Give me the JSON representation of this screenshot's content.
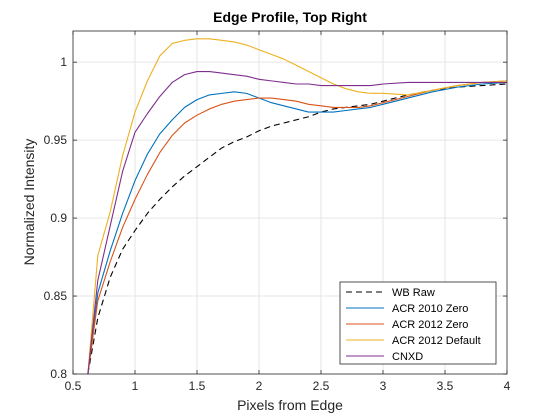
{
  "chart_data": {
    "type": "line",
    "title": "Edge Profile, Top Right",
    "xlabel": "Pixels from Edge",
    "ylabel": "Normalized Intensity",
    "xlim": [
      0.5,
      4
    ],
    "ylim": [
      0.8,
      1.02
    ],
    "xticks": [
      0.5,
      1,
      1.5,
      2,
      2.5,
      3,
      3.5,
      4
    ],
    "xtick_labels": [
      "0.5",
      "1",
      "1.5",
      "2",
      "2.5",
      "3",
      "3.5",
      "4"
    ],
    "yticks": [
      0.8,
      0.85,
      0.9,
      0.95,
      1
    ],
    "ytick_labels": [
      "0.8",
      "0.85",
      "0.9",
      "0.95",
      "1"
    ],
    "grid": true,
    "legend_position": "bottom-right",
    "series": [
      {
        "name": "WB Raw",
        "color": "#000000",
        "dashed": true,
        "x": [
          0.62,
          0.7,
          0.8,
          0.9,
          1.0,
          1.1,
          1.2,
          1.3,
          1.4,
          1.5,
          1.6,
          1.7,
          1.8,
          1.9,
          2.0,
          2.1,
          2.2,
          2.3,
          2.4,
          2.5,
          2.6,
          2.7,
          2.8,
          2.9,
          3.0,
          3.2,
          3.4,
          3.6,
          3.8,
          4.0
        ],
        "y": [
          0.8,
          0.836,
          0.862,
          0.88,
          0.892,
          0.903,
          0.912,
          0.92,
          0.927,
          0.933,
          0.939,
          0.945,
          0.949,
          0.952,
          0.956,
          0.959,
          0.961,
          0.963,
          0.965,
          0.968,
          0.97,
          0.971,
          0.972,
          0.973,
          0.975,
          0.979,
          0.982,
          0.984,
          0.985,
          0.986
        ]
      },
      {
        "name": "ACR 2010 Zero",
        "color": "#0072BD",
        "dashed": false,
        "x": [
          0.62,
          0.7,
          0.8,
          0.9,
          1.0,
          1.1,
          1.2,
          1.3,
          1.4,
          1.5,
          1.6,
          1.7,
          1.8,
          1.9,
          2.0,
          2.1,
          2.2,
          2.3,
          2.4,
          2.5,
          2.6,
          2.7,
          2.8,
          2.9,
          3.0,
          3.2,
          3.4,
          3.6,
          3.8,
          4.0
        ],
        "y": [
          0.8,
          0.852,
          0.879,
          0.903,
          0.924,
          0.941,
          0.954,
          0.963,
          0.971,
          0.976,
          0.979,
          0.98,
          0.981,
          0.98,
          0.977,
          0.974,
          0.972,
          0.97,
          0.968,
          0.968,
          0.968,
          0.969,
          0.97,
          0.971,
          0.973,
          0.977,
          0.981,
          0.984,
          0.986,
          0.987
        ]
      },
      {
        "name": "ACR 2012 Zero",
        "color": "#D95319",
        "dashed": false,
        "x": [
          0.62,
          0.7,
          0.8,
          0.9,
          1.0,
          1.1,
          1.2,
          1.3,
          1.4,
          1.5,
          1.6,
          1.7,
          1.8,
          1.9,
          2.0,
          2.1,
          2.2,
          2.3,
          2.4,
          2.5,
          2.6,
          2.7,
          2.8,
          2.9,
          3.0,
          3.2,
          3.4,
          3.6,
          3.8,
          4.0
        ],
        "y": [
          0.8,
          0.847,
          0.872,
          0.894,
          0.912,
          0.928,
          0.942,
          0.953,
          0.961,
          0.966,
          0.97,
          0.973,
          0.975,
          0.976,
          0.977,
          0.977,
          0.976,
          0.975,
          0.973,
          0.972,
          0.971,
          0.971,
          0.971,
          0.972,
          0.974,
          0.978,
          0.982,
          0.985,
          0.987,
          0.988
        ]
      },
      {
        "name": "ACR 2012 Default",
        "color": "#EDB120",
        "dashed": false,
        "x": [
          0.62,
          0.7,
          0.8,
          0.9,
          1.0,
          1.1,
          1.2,
          1.3,
          1.4,
          1.5,
          1.6,
          1.7,
          1.8,
          1.9,
          2.0,
          2.1,
          2.2,
          2.3,
          2.4,
          2.5,
          2.6,
          2.7,
          2.8,
          2.9,
          3.0,
          3.2,
          3.4,
          3.6,
          3.8,
          4.0
        ],
        "y": [
          0.8,
          0.876,
          0.904,
          0.94,
          0.968,
          0.988,
          1.004,
          1.012,
          1.014,
          1.015,
          1.015,
          1.014,
          1.013,
          1.011,
          1.008,
          1.005,
          1.002,
          0.998,
          0.994,
          0.99,
          0.986,
          0.983,
          0.981,
          0.98,
          0.98,
          0.979,
          0.982,
          0.985,
          0.987,
          0.988
        ]
      },
      {
        "name": "CNXD",
        "color": "#7E2F8E",
        "dashed": false,
        "x": [
          0.62,
          0.7,
          0.8,
          0.9,
          1.0,
          1.1,
          1.2,
          1.3,
          1.4,
          1.5,
          1.6,
          1.7,
          1.8,
          1.9,
          2.0,
          2.1,
          2.2,
          2.3,
          2.4,
          2.5,
          2.6,
          2.7,
          2.8,
          2.9,
          3.0,
          3.2,
          3.4,
          3.6,
          3.8,
          4.0
        ],
        "y": [
          0.8,
          0.86,
          0.895,
          0.93,
          0.955,
          0.967,
          0.978,
          0.987,
          0.992,
          0.994,
          0.994,
          0.993,
          0.992,
          0.991,
          0.989,
          0.988,
          0.987,
          0.986,
          0.986,
          0.985,
          0.985,
          0.985,
          0.985,
          0.985,
          0.986,
          0.987,
          0.987,
          0.987,
          0.987,
          0.987
        ]
      }
    ]
  }
}
